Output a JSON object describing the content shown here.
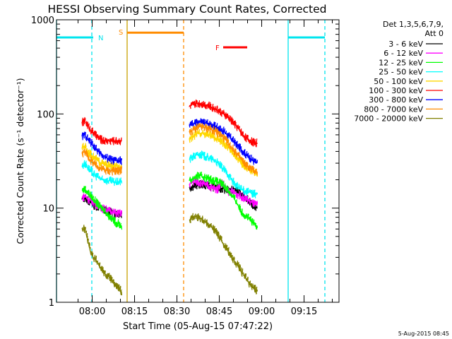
{
  "chart_data": {
    "type": "line",
    "title": "HESSI Observing Summary Count Rates, Corrected",
    "xlabel": "Start Time (05-Aug-15 07:47:22)",
    "ylabel": "Corrected Count Rate (s⁻¹ detector⁻¹)",
    "x_unit": "minutes after 07:47:22",
    "xlim": [
      0,
      100
    ],
    "ylim": [
      1,
      1000
    ],
    "y_scale": "log",
    "grid": false,
    "legend_position": "top-right",
    "xticks": [
      {
        "value": 12.63,
        "label": "08:00"
      },
      {
        "value": 27.63,
        "label": "08:15"
      },
      {
        "value": 42.63,
        "label": "08:30"
      },
      {
        "value": 57.63,
        "label": "08:45"
      },
      {
        "value": 72.63,
        "label": "09:00"
      },
      {
        "value": 87.63,
        "label": "09:15"
      }
    ],
    "yticks": [
      {
        "value": 1,
        "label": "1"
      },
      {
        "value": 10,
        "label": "10"
      },
      {
        "value": 100,
        "label": "100"
      },
      {
        "value": 1000,
        "label": "1000"
      }
    ],
    "legend_header": [
      "Det 1,3,5,6,7,9,",
      "Att 0"
    ],
    "series": [
      {
        "name": "3 - 6 keV",
        "color": "#000000",
        "segments": [
          {
            "x": [
              9,
              10,
              11,
              12,
              13,
              14,
              15,
              16,
              17,
              18,
              19,
              20,
              21,
              22,
              23
            ],
            "y": [
              12.5,
              13,
              12,
              11.5,
              10.8,
              10.5,
              10.2,
              9.8,
              9.5,
              9.3,
              9.1,
              8.9,
              8.8,
              8.7,
              8.6
            ]
          },
          {
            "x": [
              47,
              48,
              49,
              50,
              51,
              52,
              53,
              54,
              55,
              56,
              57,
              58,
              59,
              60,
              61,
              62,
              63,
              64,
              65,
              66,
              67,
              68,
              69,
              70,
              71
            ],
            "y": [
              16.5,
              17,
              17.5,
              17.8,
              18,
              17.8,
              17.5,
              17.2,
              17,
              16.5,
              16.8,
              16.2,
              16,
              15.8,
              15.5,
              15.8,
              16,
              15,
              14,
              13.5,
              13,
              12,
              11,
              10.5,
              10
            ]
          }
        ]
      },
      {
        "name": "6 - 12 keV",
        "color": "#ff00ff",
        "segments": [
          {
            "x": [
              9,
              10,
              11,
              12,
              13,
              14,
              15,
              16,
              17,
              18,
              19,
              20,
              21,
              22,
              23
            ],
            "y": [
              13,
              13.5,
              12.5,
              12,
              11.5,
              11,
              10.5,
              10,
              9.8,
              9.5,
              9.3,
              9,
              8.9,
              8.8,
              8.7
            ]
          },
          {
            "x": [
              47,
              48,
              49,
              50,
              51,
              52,
              53,
              54,
              55,
              56,
              57,
              58,
              59,
              60,
              61,
              62,
              63,
              64,
              65,
              66,
              67,
              68,
              69,
              70,
              71
            ],
            "y": [
              18,
              19,
              19.5,
              19,
              18.5,
              18,
              17.5,
              17,
              16.5,
              16,
              16,
              19,
              18,
              15.5,
              15,
              15,
              14.5,
              14,
              13.5,
              13,
              12.5,
              12,
              11.5,
              11,
              10.8
            ]
          }
        ]
      },
      {
        "name": "12 - 25 keV",
        "color": "#00ff00",
        "segments": [
          {
            "x": [
              9,
              10,
              11,
              12,
              13,
              14,
              15,
              16,
              17,
              18,
              19,
              20,
              21,
              22,
              23
            ],
            "y": [
              15.5,
              16,
              14.5,
              13.5,
              12.5,
              11.5,
              10.5,
              10,
              9.5,
              8.5,
              8,
              7.5,
              7,
              6.8,
              6.5
            ]
          },
          {
            "x": [
              47,
              48,
              49,
              50,
              51,
              52,
              53,
              54,
              55,
              56,
              57,
              58,
              59,
              60,
              61,
              62,
              63,
              64,
              65,
              66,
              67,
              68,
              69,
              70,
              71
            ],
            "y": [
              19.5,
              20.5,
              21.5,
              22,
              22,
              21.5,
              21,
              20.5,
              20,
              19.5,
              19,
              18.5,
              17.5,
              16.5,
              15,
              13.5,
              12.5,
              11,
              9.5,
              8.8,
              8.2,
              7.8,
              7.2,
              6.8,
              6.5
            ]
          }
        ]
      },
      {
        "name": "25 - 50 keV",
        "color": "#00ffff",
        "segments": [
          {
            "x": [
              9,
              10,
              11,
              12,
              13,
              14,
              15,
              16,
              17,
              18,
              19,
              20,
              21,
              22,
              23
            ],
            "y": [
              28,
              30,
              27,
              25,
              23,
              22,
              21,
              20,
              20,
              19.5,
              19.5,
              19,
              19,
              19,
              19.5
            ]
          },
          {
            "x": [
              47,
              48,
              49,
              50,
              51,
              52,
              53,
              54,
              55,
              56,
              57,
              58,
              59,
              60,
              61,
              62,
              63,
              64,
              65,
              66,
              67,
              68,
              69,
              70,
              71
            ],
            "y": [
              33,
              35,
              36,
              37,
              37,
              36,
              35,
              34,
              33,
              32,
              30,
              28,
              26,
              24,
              22,
              20,
              18,
              17,
              16,
              15.5,
              15,
              14.8,
              14.5,
              14.2,
              14
            ]
          }
        ]
      },
      {
        "name": "50 - 100 keV",
        "color": "#ffd700",
        "segments": [
          {
            "x": [
              9,
              10,
              11,
              12,
              13,
              14,
              15,
              16,
              17,
              18,
              19,
              20,
              21,
              22,
              23
            ],
            "y": [
              44,
              46,
              40,
              37,
              35,
              33,
              31,
              30,
              29,
              28.5,
              28,
              27.5,
              27.5,
              27.5,
              28
            ]
          },
          {
            "x": [
              47,
              48,
              49,
              50,
              51,
              52,
              53,
              54,
              55,
              56,
              57,
              58,
              59,
              60,
              61,
              62,
              63,
              64,
              65,
              66,
              67,
              68,
              69,
              70,
              71
            ],
            "y": [
              55,
              58,
              60,
              62,
              63,
              62,
              61,
              60,
              58,
              56,
              54,
              52,
              49,
              46,
              43,
              40,
              37,
              34,
              31,
              29,
              27,
              26,
              25,
              24.5,
              24
            ]
          }
        ]
      },
      {
        "name": "100 - 300 keV",
        "color": "#ff0000",
        "segments": [
          {
            "x": [
              9,
              10,
              11,
              12,
              13,
              14,
              15,
              16,
              17,
              18,
              19,
              20,
              21,
              22,
              23
            ],
            "y": [
              82,
              84,
              75,
              68,
              63,
              58,
              55,
              53,
              52,
              52,
              52,
              52,
              52,
              52,
              52
            ]
          },
          {
            "x": [
              47,
              48,
              49,
              50,
              51,
              52,
              53,
              54,
              55,
              56,
              57,
              58,
              59,
              60,
              61,
              62,
              63,
              64,
              65,
              66,
              67,
              68,
              69,
              70,
              71
            ],
            "y": [
              120,
              125,
              128,
              130,
              130,
              128,
              125,
              122,
              118,
              115,
              110,
              105,
              100,
              95,
              90,
              84,
              78,
              72,
              66,
              60,
              56,
              53,
              51,
              50,
              49
            ]
          }
        ]
      },
      {
        "name": "300 - 800 keV",
        "color": "#0000ff",
        "segments": [
          {
            "x": [
              9,
              10,
              11,
              12,
              13,
              14,
              15,
              16,
              17,
              18,
              19,
              20,
              21,
              22,
              23
            ],
            "y": [
              58,
              60,
              54,
              50,
              46,
              42,
              39,
              37,
              35,
              34,
              33,
              32,
              32,
              32,
              32
            ]
          },
          {
            "x": [
              47,
              48,
              49,
              50,
              51,
              52,
              53,
              54,
              55,
              56,
              57,
              58,
              59,
              60,
              61,
              62,
              63,
              64,
              65,
              66,
              67,
              68,
              69,
              70,
              71
            ],
            "y": [
              76,
              78,
              80,
              82,
              82,
              81,
              80,
              79,
              77,
              75,
              72,
              69,
              66,
              62,
              58,
              54,
              50,
              46,
              43,
              40,
              37,
              35,
              33,
              31,
              30
            ]
          }
        ]
      },
      {
        "name": "800 - 7000 keV",
        "color": "#ff8c00",
        "segments": [
          {
            "x": [
              9,
              10,
              11,
              12,
              13,
              14,
              15,
              16,
              17,
              18,
              19,
              20,
              21,
              22,
              23
            ],
            "y": [
              38,
              40,
              35,
              32,
              30,
              28,
              27,
              26,
              25.5,
              25,
              25,
              25,
              25,
              25,
              25.5
            ]
          },
          {
            "x": [
              47,
              48,
              49,
              50,
              51,
              52,
              53,
              54,
              55,
              56,
              57,
              58,
              59,
              60,
              61,
              62,
              63,
              64,
              65,
              66,
              67,
              68,
              69,
              70,
              71
            ],
            "y": [
              64,
              67,
              70,
              72,
              73,
              72,
              71,
              70,
              68,
              66,
              63,
              60,
              56,
              52,
              48,
              44,
              40,
              37,
              34,
              31,
              29,
              27,
              26,
              25,
              24.5
            ]
          }
        ]
      },
      {
        "name": "7000 - 20000 keV",
        "color": "#808000",
        "segments": [
          {
            "x": [
              9,
              10,
              11,
              12,
              13,
              14,
              15,
              16,
              17,
              18,
              19,
              20,
              21,
              22,
              23
            ],
            "y": [
              6,
              6,
              4.5,
              3.5,
              3,
              2.8,
              2.5,
              2.2,
              2,
              1.9,
              1.8,
              1.6,
              1.5,
              1.4,
              1.3
            ]
          },
          {
            "x": [
              47,
              48,
              49,
              50,
              51,
              52,
              53,
              54,
              55,
              56,
              57,
              58,
              59,
              60,
              61,
              62,
              63,
              64,
              65,
              66,
              67,
              68,
              69,
              70,
              71
            ],
            "y": [
              7.5,
              8,
              8.2,
              8,
              7.8,
              7.5,
              7,
              6.6,
              6.2,
              5.8,
              5.2,
              4.7,
              4.2,
              3.8,
              3.4,
              3,
              2.7,
              2.5,
              2.2,
              2,
              1.8,
              1.6,
              1.5,
              1.4,
              1.3
            ]
          }
        ]
      }
    ],
    "vertical_markers": [
      {
        "x": 0,
        "color": "#00e5ee",
        "style": "solid"
      },
      {
        "x": 12.5,
        "color": "#00e5ee",
        "style": "dashed"
      },
      {
        "x": 25,
        "color": "#c8a000",
        "style": "solid"
      },
      {
        "x": 45,
        "color": "#ff8c00",
        "style": "dashed"
      },
      {
        "x": 82,
        "color": "#00e5ee",
        "style": "solid"
      },
      {
        "x": 95,
        "color": "#00e5ee",
        "style": "dashed"
      }
    ],
    "interval_bars": [
      {
        "label": "N",
        "x": [
          0,
          13
        ],
        "y": 650,
        "color": "#00e5ee"
      },
      {
        "label": "S",
        "x": [
          25,
          45
        ],
        "y": 730,
        "color": "#ff8c00"
      },
      {
        "label": "F",
        "x": [
          59,
          67.5
        ],
        "y": 510,
        "color": "#ff0000"
      },
      {
        "label": "",
        "x": [
          82,
          95
        ],
        "y": 650,
        "color": "#00e5ee"
      }
    ],
    "footer_date": "5-Aug-2015 08:45"
  }
}
